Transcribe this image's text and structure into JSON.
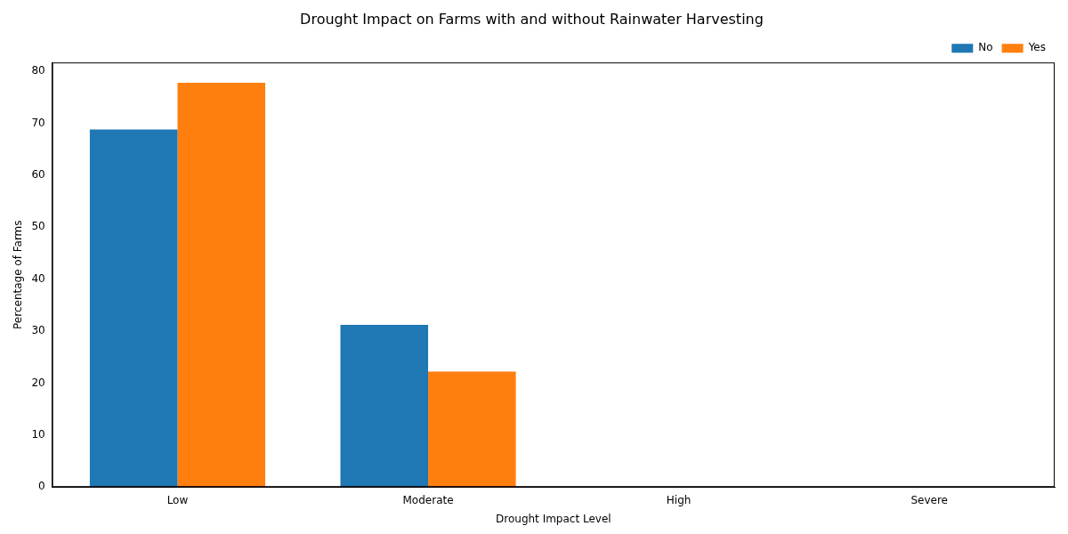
{
  "chart_data": {
    "type": "bar",
    "title": "Drought Impact on Farms with and without Rainwater Harvesting",
    "x_label": "Drought Impact Level",
    "y_label": "Percentage of Farms",
    "categories": [
      "Low",
      "Moderate",
      "High",
      "Severe"
    ],
    "series": [
      {
        "name": "No",
        "color": "#1f77b4",
        "values": [
          68.8,
          31.2,
          0,
          0
        ]
      },
      {
        "name": "Yes",
        "color": "#ff7f0e",
        "values": [
          77.8,
          22.2,
          0,
          0
        ]
      }
    ],
    "ylim": [
      0,
      81.7
    ],
    "yticks": [
      0,
      10,
      20,
      30,
      40,
      50,
      60,
      70,
      80
    ],
    "grid": false,
    "legend": "upper right"
  }
}
